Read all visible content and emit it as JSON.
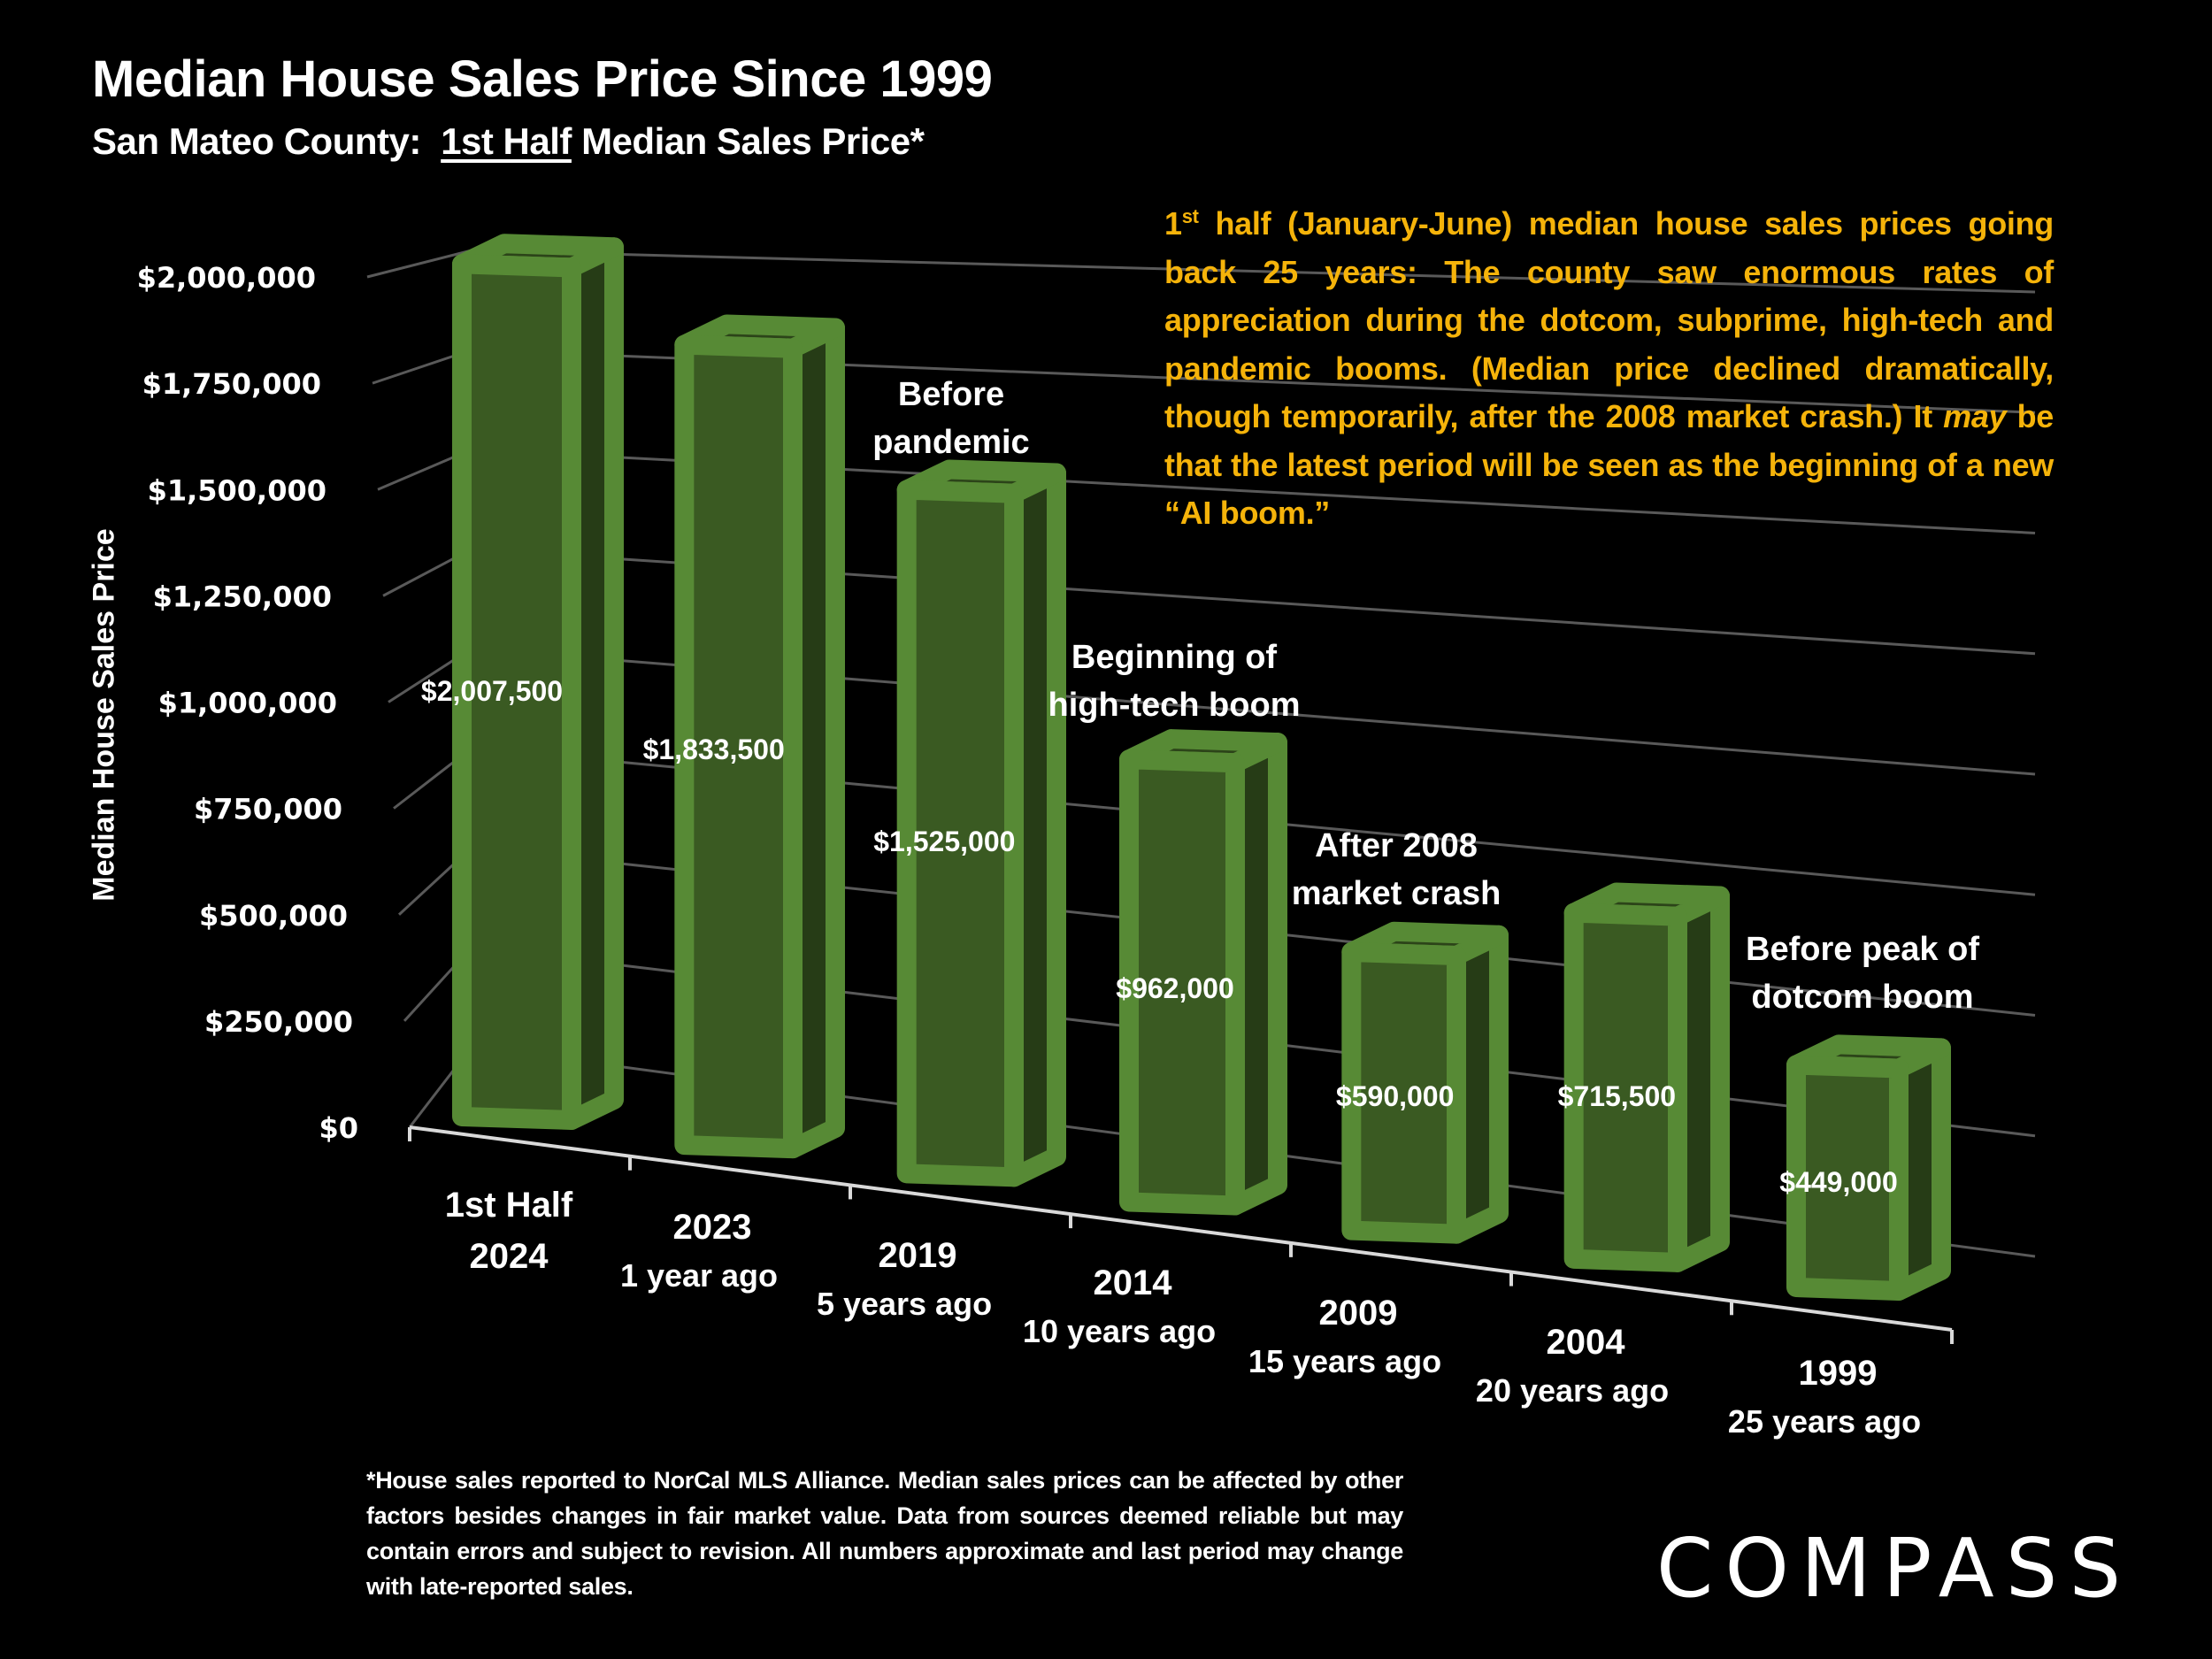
{
  "header": {
    "title": "Median House Sales Price Since 1999",
    "subtitle_prefix": "San Mateo County:  ",
    "subtitle_underlined": "1st Half",
    "subtitle_suffix": " Median Sales Price*"
  },
  "annotation": {
    "sup_base": "1",
    "sup": "st",
    "part1": " half (January-June) median house sales prices going back 25 years:  The county saw enormous rates of appreciation during the dotcom, subprime, high-tech and pandemic booms. (Median price declined dramatically, though  temporarily, after the 2008 market crash.) It ",
    "italic": "may",
    "part2": " be that the latest period will be seen as the beginning of a new “AI boom.”"
  },
  "footnote": "*House sales reported to NorCal MLS Alliance. Median sales prices can be affected by other factors besides changes in fair market value. Data from sources deemed reliable but may contain errors and subject to revision. All numbers  approximate and last period may change with late-reported sales.",
  "logo": {
    "text": "COMPASS"
  },
  "colors": {
    "background": "#000000",
    "bar_outline": "#578a35",
    "bar_front": "#3a5a22",
    "bar_side": "#263c16",
    "bar_top": "#2c4419",
    "grid": "#595959",
    "axis": "#d9d9d9",
    "annotation_text": "#f5b30a"
  },
  "chart_data": {
    "type": "bar",
    "style": "3d-column",
    "title": "Median House Sales Price Since 1999",
    "subtitle": "San Mateo County: 1st Half Median Sales Price*",
    "xlabel": "",
    "ylabel": "Median House Sales Price",
    "ylim": [
      0,
      2000000
    ],
    "grid": true,
    "yticks": [
      {
        "value": 0,
        "label": "$0"
      },
      {
        "value": 250000,
        "label": "$250,000"
      },
      {
        "value": 500000,
        "label": "$500,000"
      },
      {
        "value": 750000,
        "label": "$750,000"
      },
      {
        "value": 1000000,
        "label": "$1,000,000"
      },
      {
        "value": 1250000,
        "label": "$1,250,000"
      },
      {
        "value": 1500000,
        "label": "$1,500,000"
      },
      {
        "value": 1750000,
        "label": "$1,750,000"
      },
      {
        "value": 2000000,
        "label": "$2,000,000"
      }
    ],
    "categories": [
      {
        "line1": "1st Half",
        "line2": "2024"
      },
      {
        "line1": "2023",
        "line2": "1 year ago"
      },
      {
        "line1": "2019",
        "line2": "5 years ago"
      },
      {
        "line1": "2014",
        "line2": "10 years ago"
      },
      {
        "line1": "2009",
        "line2": "15 years ago"
      },
      {
        "line1": "2004",
        "line2": "20 years ago"
      },
      {
        "line1": "1999",
        "line2": "25 years ago"
      }
    ],
    "values": [
      2007500,
      1833500,
      1525000,
      962000,
      590000,
      715500,
      449000
    ],
    "data_labels": [
      "$2,007,500",
      "$1,833,500",
      "$1,525,000",
      "$962,000",
      "$590,000",
      "$715,500",
      "$449,000"
    ],
    "annotations": [
      {
        "category_index": 2,
        "lines": [
          "Before",
          "pandemic"
        ]
      },
      {
        "category_index": 3,
        "lines": [
          "Beginning of",
          "high-tech boom"
        ]
      },
      {
        "category_index": 4,
        "lines": [
          "After 2008",
          "market crash"
        ]
      },
      {
        "category_index": 6,
        "lines": [
          "Before peak of",
          "dotcom boom"
        ]
      }
    ]
  }
}
